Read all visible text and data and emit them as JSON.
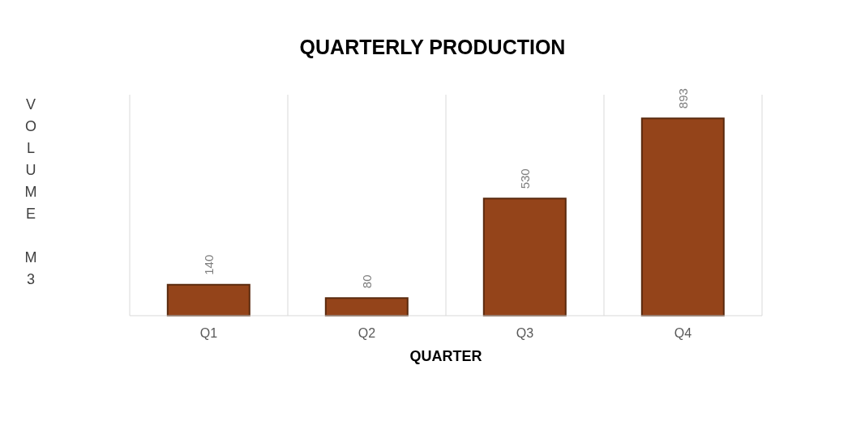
{
  "chart_data": {
    "type": "bar",
    "title": "QUARTERLY PRODUCTION",
    "xlabel": "QUARTER",
    "ylabel": "VOLUME M3",
    "categories": [
      "Q1",
      "Q2",
      "Q3",
      "Q4"
    ],
    "values": [
      140,
      80,
      530,
      893
    ],
    "color": "#94441a",
    "data_labels": true,
    "grid": "x"
  }
}
